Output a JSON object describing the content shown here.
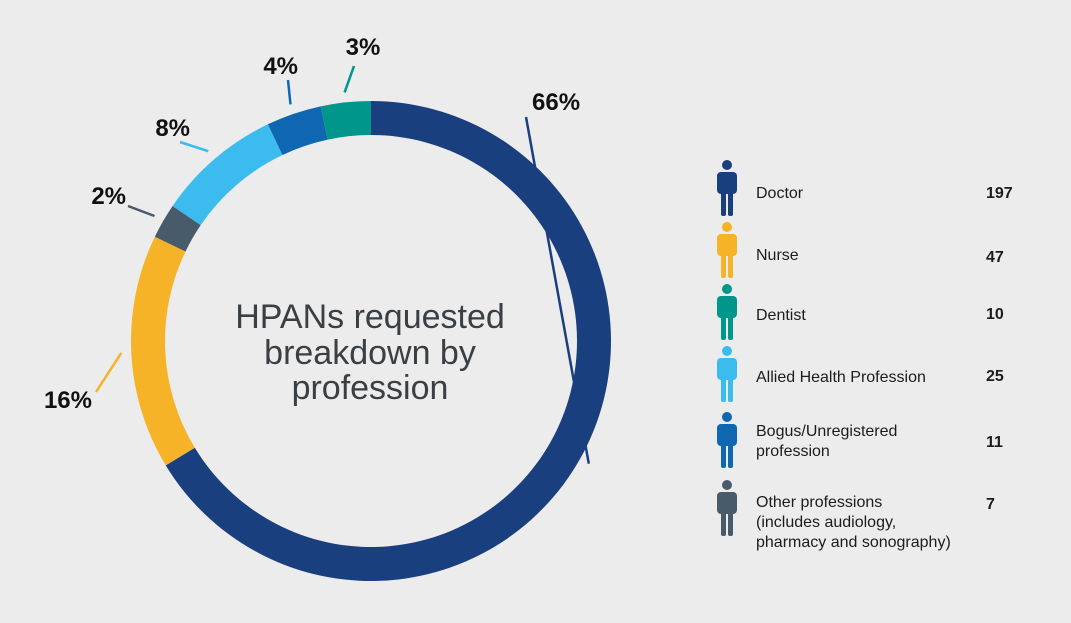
{
  "title_lines": [
    "HPANs requested",
    "breakdown by",
    "profession"
  ],
  "chart_data": {
    "type": "pie",
    "variant": "donut",
    "title": "HPANs requested breakdown by profession",
    "categories": [
      "Doctor",
      "Nurse",
      "Other professions (includes audiology, pharmacy and sonography)",
      "Allied Health Profession",
      "Bogus/Unregistered profession",
      "Dentist"
    ],
    "values": [
      197,
      47,
      7,
      25,
      11,
      10
    ],
    "percent_labels": [
      "66%",
      "16%",
      "2%",
      "8%",
      "4%",
      "3%"
    ],
    "colors": [
      "#1a3f7f",
      "#f6b328",
      "#475b6b",
      "#3cbcee",
      "#0f67b1",
      "#00968c"
    ],
    "legend_position": "right",
    "grid": false
  },
  "legend": [
    {
      "label_lines": [
        "Doctor"
      ],
      "value": "197",
      "color": "#1a3f7f",
      "icon": "person-icon"
    },
    {
      "label_lines": [
        "Nurse"
      ],
      "value": "47",
      "color": "#f6b328",
      "icon": "person-icon"
    },
    {
      "label_lines": [
        "Dentist"
      ],
      "value": "10",
      "color": "#00968c",
      "icon": "person-icon"
    },
    {
      "label_lines": [
        "Allied Health Profession"
      ],
      "value": "25",
      "color": "#3cbcee",
      "icon": "person-icon"
    },
    {
      "label_lines": [
        "Bogus/Unregistered",
        "profession"
      ],
      "value": "11",
      "color": "#0f67b1",
      "icon": "person-icon"
    },
    {
      "label_lines": [
        "Other professions",
        "(includes audiology,",
        "pharmacy and sonography)"
      ],
      "value": "7",
      "color": "#475b6b",
      "icon": "person-icon"
    }
  ]
}
